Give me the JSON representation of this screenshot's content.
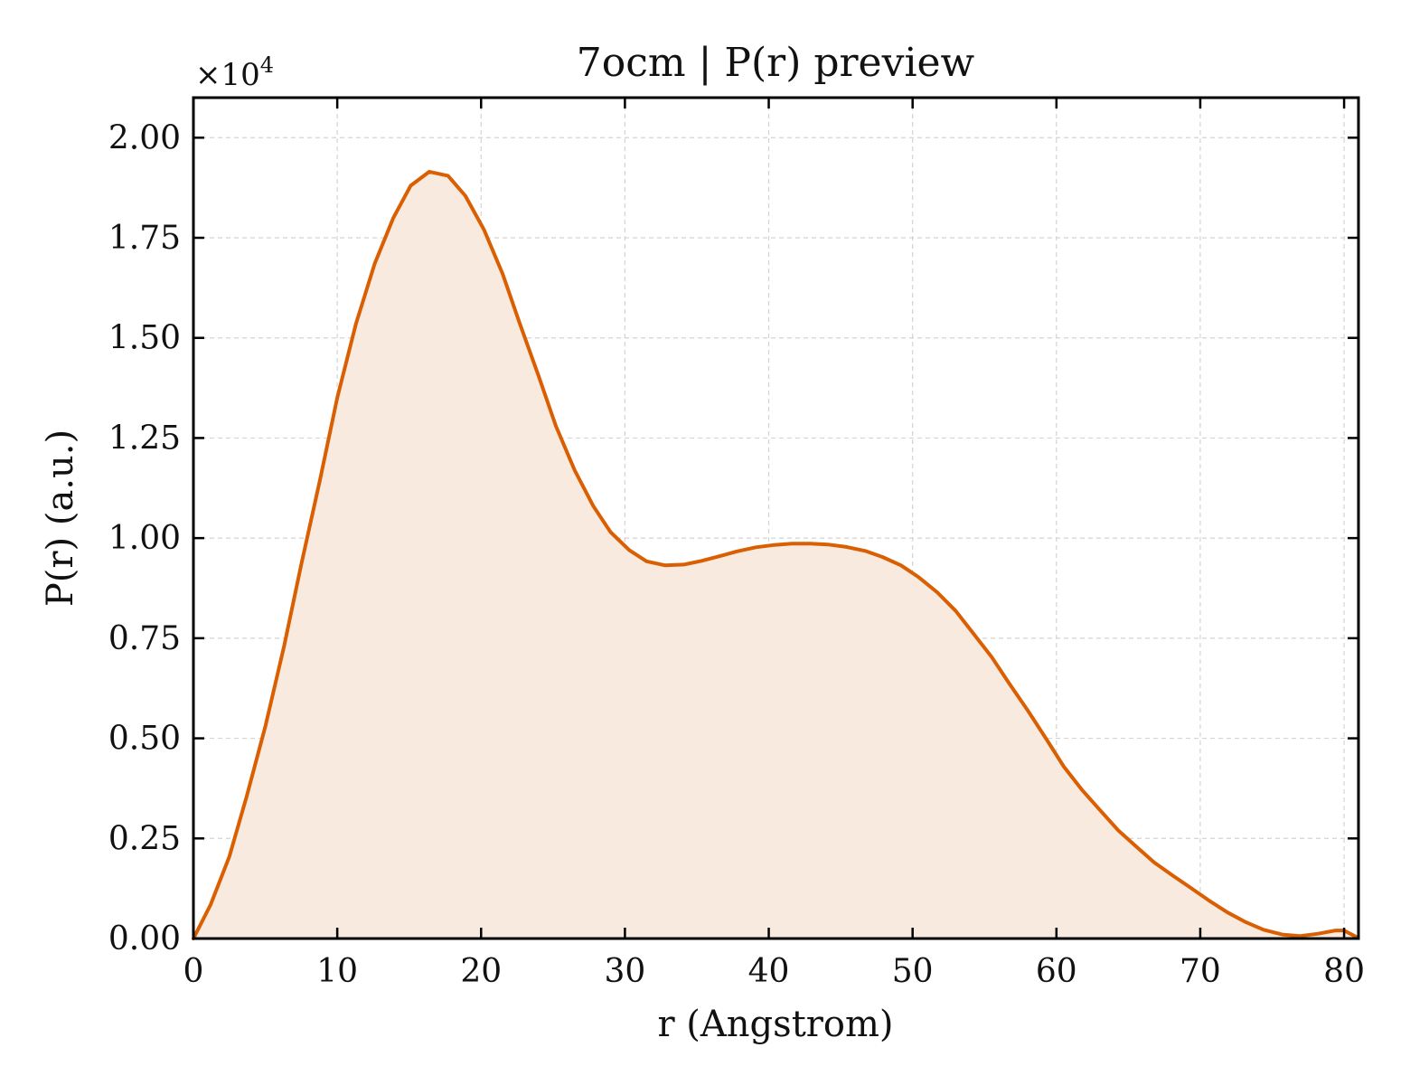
{
  "chart_data": {
    "type": "area",
    "title": "7ocm | P(r) preview",
    "xlabel": "r (Angstrom)",
    "ylabel": "P(r) (a.u.)",
    "y_multiplier_label": "×10",
    "y_multiplier_exponent": "4",
    "xlim": [
      0,
      81
    ],
    "ylim": [
      0,
      2.1
    ],
    "x_ticks": [
      0,
      10,
      20,
      30,
      40,
      50,
      60,
      70,
      80
    ],
    "x_tick_labels": [
      "0",
      "10",
      "20",
      "30",
      "40",
      "50",
      "60",
      "70",
      "80"
    ],
    "y_ticks": [
      0,
      0.25,
      0.5,
      0.75,
      1.0,
      1.25,
      1.5,
      1.75,
      2.0
    ],
    "y_tick_labels": [
      "0.00",
      "0.25",
      "0.50",
      "0.75",
      "1.00",
      "1.25",
      "1.50",
      "1.75",
      "2.00"
    ],
    "grid": true,
    "line_color": "#d95f02",
    "fill_color": "#f9eadf",
    "series": [
      {
        "x": [
          0,
          1.2,
          2.5,
          3.7,
          5.0,
          6.3,
          7.5,
          8.8,
          10.0,
          11.3,
          12.6,
          13.9,
          15.1,
          16.4,
          17.7,
          18.9,
          20.2,
          21.5,
          22.7,
          24.0,
          25.2,
          26.5,
          27.8,
          29.0,
          30.3,
          31.5,
          32.8,
          34.1,
          35.3,
          36.6,
          37.8,
          39.1,
          40.4,
          41.6,
          42.9,
          44.1,
          45.4,
          46.7,
          47.9,
          49.2,
          50.4,
          51.7,
          53.0,
          54.2,
          55.5,
          56.7,
          58.0,
          59.3,
          60.5,
          61.8,
          63.1,
          64.3,
          65.6,
          66.8,
          68.1,
          69.4,
          70.6,
          71.9,
          73.1,
          74.4,
          75.7,
          76.9,
          78.2,
          79.4,
          80.0,
          80.8
        ],
        "y": [
          0.0,
          0.085,
          0.205,
          0.355,
          0.53,
          0.73,
          0.935,
          1.145,
          1.35,
          1.535,
          1.685,
          1.8,
          1.88,
          1.915,
          1.905,
          1.855,
          1.77,
          1.66,
          1.535,
          1.405,
          1.28,
          1.17,
          1.08,
          1.015,
          0.97,
          0.942,
          0.932,
          0.934,
          0.943,
          0.955,
          0.967,
          0.977,
          0.983,
          0.986,
          0.986,
          0.984,
          0.978,
          0.968,
          0.953,
          0.932,
          0.903,
          0.865,
          0.818,
          0.763,
          0.703,
          0.638,
          0.57,
          0.498,
          0.43,
          0.37,
          0.318,
          0.27,
          0.228,
          0.19,
          0.157,
          0.125,
          0.095,
          0.065,
          0.042,
          0.022,
          0.01,
          0.006,
          0.012,
          0.02,
          0.02,
          0.005
        ]
      }
    ]
  }
}
